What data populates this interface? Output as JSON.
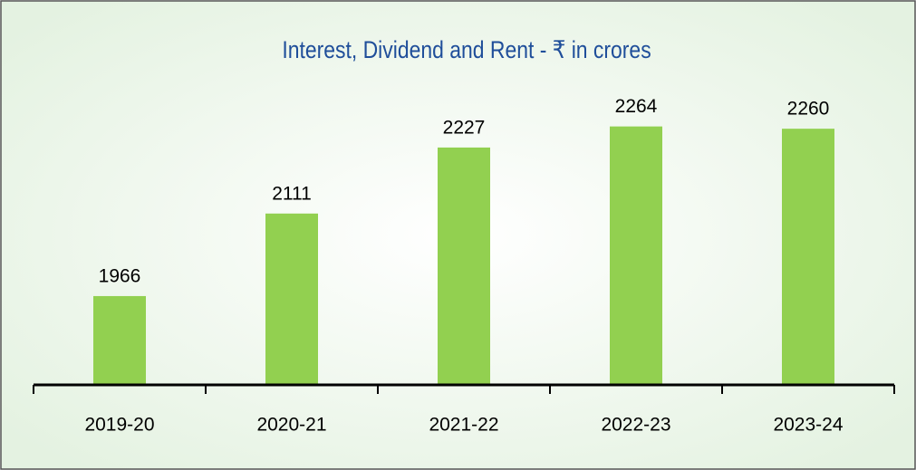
{
  "chart_data": {
    "type": "bar",
    "title": "Interest, Dividend and Rent - ₹ in crores",
    "categories": [
      "2019-20",
      "2020-21",
      "2021-22",
      "2022-23",
      "2023-24"
    ],
    "values": [
      1966,
      2111,
      2227,
      2264,
      2260
    ],
    "color": "#92d050",
    "ylim": [
      1810,
      2300
    ]
  }
}
